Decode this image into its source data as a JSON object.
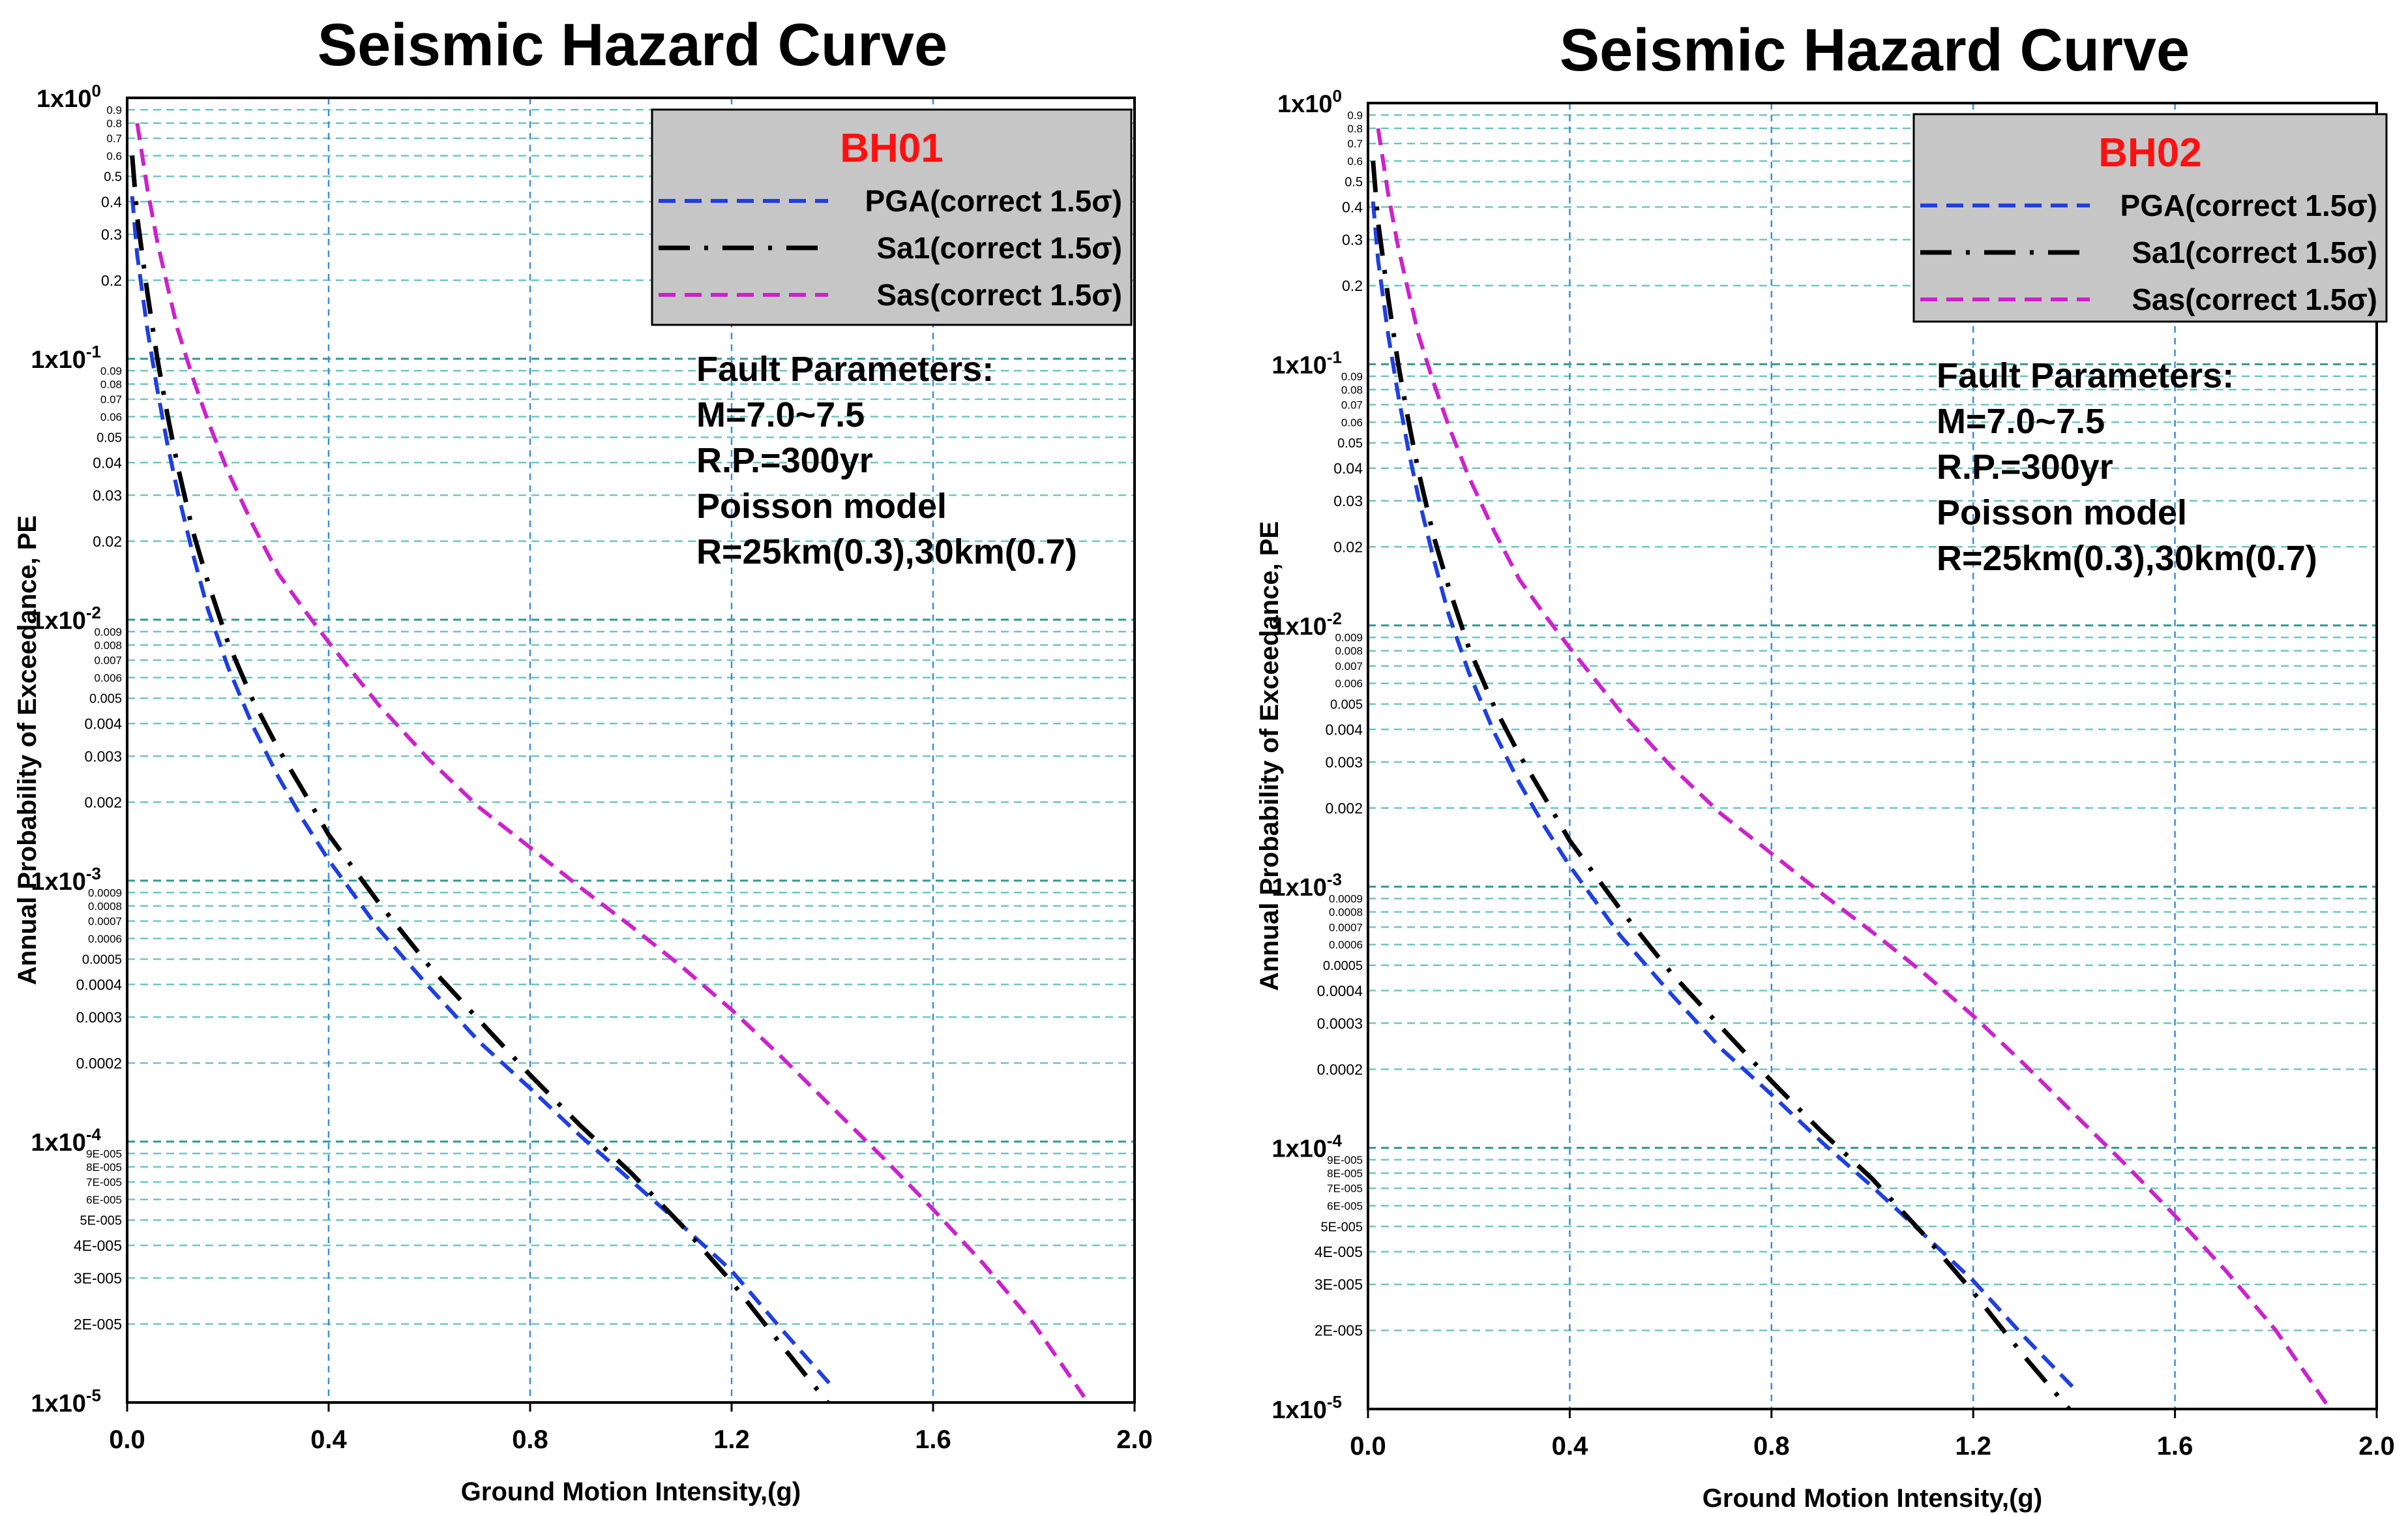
{
  "chart_data": [
    {
      "type": "line",
      "title": "Seismic Hazard Curve",
      "xlabel": "Ground Motion Intensity,(g)",
      "ylabel": "Annual Probability of Exceedance, PE",
      "xlim": [
        0.0,
        2.0
      ],
      "ylim": [
        1e-05,
        1
      ],
      "yscale": "log",
      "x_ticks": [
        "0.0",
        "0.4",
        "0.8",
        "1.2",
        "1.6",
        "2.0"
      ],
      "y_major_labels": [
        "1x10",
        "1x10",
        "1x10",
        "1x10",
        "1x10",
        "1x10"
      ],
      "y_major_exponents": [
        "0",
        "-1",
        "-2",
        "-3",
        "-4",
        "-5"
      ],
      "y_minor_labels": [
        [
          "0.9",
          "0.8",
          "0.7",
          "0.6",
          "0.5",
          "0.4",
          "0.3",
          "0.2"
        ],
        [
          "0.09",
          "0.08",
          "0.07",
          "0.06",
          "0.05",
          "0.04",
          "0.03",
          "0.02"
        ],
        [
          "0.009",
          "0.008",
          "0.007",
          "0.006",
          "0.005",
          "0.004",
          "0.003",
          "0.002"
        ],
        [
          "0.0009",
          "0.0008",
          "0.0007",
          "0.0006",
          "0.0005",
          "0.0004",
          "0.0003",
          "0.0002"
        ],
        [
          "9E-005",
          "8E-005",
          "7E-005",
          "6E-005",
          "5E-005",
          "4E-005",
          "3E-005",
          "2E-005"
        ]
      ],
      "legend_title": "BH01",
      "legend_position": "top-right",
      "grid": true,
      "annotation": [
        "Fault Parameters:",
        "M=7.0~7.5",
        "R.P.=300yr",
        "Poisson model",
        "R=25km(0.3),30km(0.7)"
      ],
      "series": [
        {
          "name": "PGA(correct 1.5σ)",
          "color": "#1f3fe0",
          "dash": "dashed",
          "x": [
            0.01,
            0.02,
            0.04,
            0.06,
            0.08,
            0.1,
            0.13,
            0.16,
            0.2,
            0.25,
            0.3,
            0.35,
            0.4,
            0.5,
            0.6,
            0.7,
            0.8,
            0.9,
            1.0,
            1.1,
            1.2,
            1.3,
            1.4
          ],
          "y": [
            0.42,
            0.25,
            0.13,
            0.076,
            0.047,
            0.031,
            0.018,
            0.011,
            0.0066,
            0.0039,
            0.0025,
            0.0017,
            0.0012,
            0.00065,
            0.00039,
            0.00024,
            0.00016,
            0.000105,
            7.1e-05,
            4.8e-05,
            3.2e-05,
            1.9e-05,
            1.15e-05
          ]
        },
        {
          "name": "Sa1(correct 1.5σ)",
          "color": "#000000",
          "dash": "dashdot",
          "x": [
            0.01,
            0.02,
            0.04,
            0.06,
            0.08,
            0.1,
            0.13,
            0.16,
            0.2,
            0.25,
            0.3,
            0.35,
            0.4,
            0.5,
            0.6,
            0.7,
            0.8,
            0.9,
            1.0,
            1.1,
            1.2,
            1.3,
            1.4
          ],
          "y": [
            0.6,
            0.35,
            0.18,
            0.1,
            0.061,
            0.039,
            0.022,
            0.014,
            0.0082,
            0.0049,
            0.0032,
            0.0022,
            0.0015,
            0.00082,
            0.00047,
            0.00029,
            0.00018,
            0.000115,
            7.6e-05,
            4.8e-05,
            2.9e-05,
            1.65e-05,
            9.5e-06
          ]
        },
        {
          "name": "Sas(correct 1.5σ)",
          "color": "#cc22cc",
          "dash": "dashed",
          "x": [
            0.02,
            0.04,
            0.06,
            0.08,
            0.1,
            0.13,
            0.16,
            0.2,
            0.25,
            0.3,
            0.35,
            0.4,
            0.5,
            0.6,
            0.7,
            0.8,
            0.9,
            1.0,
            1.1,
            1.2,
            1.3,
            1.4,
            1.5,
            1.6,
            1.7,
            1.8,
            1.9
          ],
          "y": [
            0.8,
            0.45,
            0.28,
            0.19,
            0.13,
            0.085,
            0.058,
            0.037,
            0.023,
            0.015,
            0.011,
            0.0082,
            0.0047,
            0.0029,
            0.0019,
            0.00134,
            0.00094,
            0.00067,
            0.00047,
            0.00032,
            0.00021,
            0.000135,
            8.7e-05,
            5.5e-05,
            3.4e-05,
            2e-05,
            1.05e-05
          ]
        }
      ]
    },
    {
      "type": "line",
      "title": "Seismic Hazard Curve",
      "xlabel": "Ground Motion Intensity,(g)",
      "ylabel": "Annual Probability of Exceedance, PE",
      "xlim": [
        0.0,
        2.0
      ],
      "ylim": [
        1e-05,
        1
      ],
      "yscale": "log",
      "x_ticks": [
        "0.0",
        "0.4",
        "0.8",
        "1.2",
        "1.6",
        "2.0"
      ],
      "y_major_labels": [
        "1x10",
        "1x10",
        "1x10",
        "1x10",
        "1x10",
        "1x10"
      ],
      "y_major_exponents": [
        "0",
        "-1",
        "-2",
        "-3",
        "-4",
        "-5"
      ],
      "y_minor_labels": [
        [
          "0.9",
          "0.8",
          "0.7",
          "0.6",
          "0.5",
          "0.4",
          "0.3",
          "0.2"
        ],
        [
          "0.09",
          "0.08",
          "0.07",
          "0.06",
          "0.05",
          "0.04",
          "0.03",
          "0.02"
        ],
        [
          "0.009",
          "0.008",
          "0.007",
          "0.006",
          "0.005",
          "0.004",
          "0.003",
          "0.002"
        ],
        [
          "0.0009",
          "0.0008",
          "0.0007",
          "0.0006",
          "0.0005",
          "0.0004",
          "0.0003",
          "0.0002"
        ],
        [
          "9E-005",
          "8E-005",
          "7E-005",
          "6E-005",
          "5E-005",
          "4E-005",
          "3E-005",
          "2E-005"
        ]
      ],
      "legend_title": "BH02",
      "legend_position": "top-right",
      "grid": true,
      "annotation": [
        "Fault Parameters:",
        "M=7.0~7.5",
        "R.P.=300yr",
        "Poisson model",
        "R=25km(0.3),30km(0.7)"
      ],
      "series": [
        {
          "name": "PGA(correct 1.5σ)",
          "color": "#1f3fe0",
          "dash": "dashed",
          "x": [
            0.01,
            0.02,
            0.04,
            0.06,
            0.08,
            0.1,
            0.13,
            0.16,
            0.2,
            0.25,
            0.3,
            0.35,
            0.4,
            0.5,
            0.6,
            0.7,
            0.8,
            0.9,
            1.0,
            1.1,
            1.2,
            1.3,
            1.4
          ],
          "y": [
            0.42,
            0.25,
            0.13,
            0.076,
            0.047,
            0.031,
            0.018,
            0.011,
            0.0066,
            0.0039,
            0.0025,
            0.0017,
            0.0012,
            0.00065,
            0.00039,
            0.00024,
            0.00016,
            0.000105,
            7.1e-05,
            4.7e-05,
            3.1e-05,
            1.9e-05,
            1.2e-05
          ]
        },
        {
          "name": "Sa1(correct 1.5σ)",
          "color": "#000000",
          "dash": "dashdot",
          "x": [
            0.01,
            0.02,
            0.04,
            0.06,
            0.08,
            0.1,
            0.13,
            0.16,
            0.2,
            0.25,
            0.3,
            0.35,
            0.4,
            0.5,
            0.6,
            0.7,
            0.8,
            0.9,
            1.0,
            1.1,
            1.2,
            1.3,
            1.4
          ],
          "y": [
            0.6,
            0.35,
            0.18,
            0.1,
            0.061,
            0.039,
            0.022,
            0.014,
            0.0082,
            0.0049,
            0.0032,
            0.0022,
            0.0015,
            0.00082,
            0.00047,
            0.00029,
            0.00018,
            0.000115,
            7.6e-05,
            4.7e-05,
            2.8e-05,
            1.6e-05,
            9.5e-06
          ]
        },
        {
          "name": "Sas(correct 1.5σ)",
          "color": "#cc22cc",
          "dash": "dashed",
          "x": [
            0.02,
            0.04,
            0.06,
            0.08,
            0.1,
            0.13,
            0.16,
            0.2,
            0.25,
            0.3,
            0.35,
            0.4,
            0.5,
            0.6,
            0.7,
            0.8,
            0.9,
            1.0,
            1.1,
            1.2,
            1.3,
            1.4,
            1.5,
            1.6,
            1.7,
            1.8,
            1.9
          ],
          "y": [
            0.8,
            0.45,
            0.28,
            0.19,
            0.13,
            0.085,
            0.058,
            0.037,
            0.023,
            0.015,
            0.011,
            0.0082,
            0.0047,
            0.0029,
            0.0019,
            0.00134,
            0.00094,
            0.00067,
            0.00047,
            0.00032,
            0.00021,
            0.000135,
            8.7e-05,
            5.5e-05,
            3.4e-05,
            2e-05,
            1.05e-05
          ]
        }
      ]
    }
  ]
}
